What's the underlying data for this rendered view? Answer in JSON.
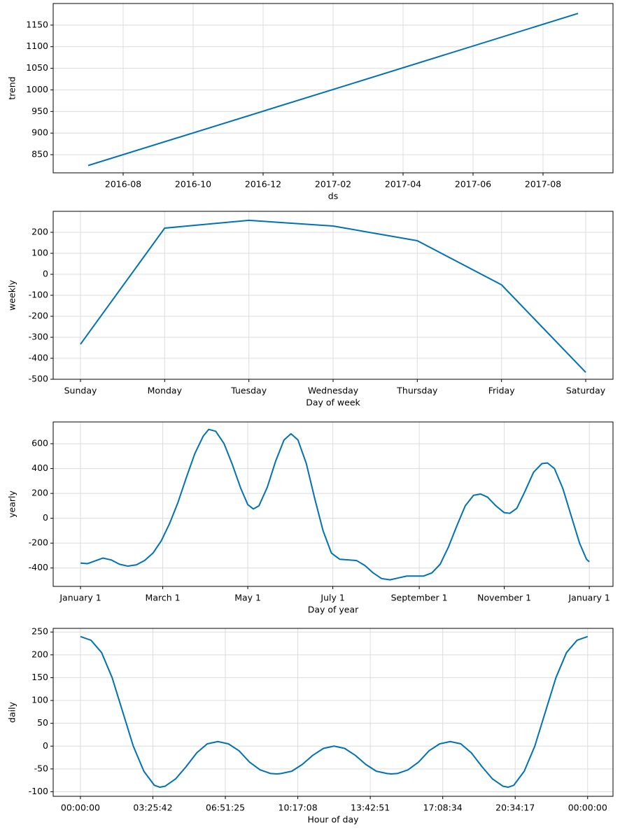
{
  "chart_data": [
    {
      "type": "line",
      "ylabel": "trend",
      "xlabel": "ds",
      "color": "#0072B2",
      "grid": true,
      "x": [
        "2016-07",
        "2017-09"
      ],
      "values": [
        825,
        1177
      ],
      "xlim": [
        "2016-06",
        "2017-10"
      ],
      "xticks": [
        "2016-08",
        "2016-10",
        "2016-12",
        "2017-02",
        "2017-04",
        "2017-06",
        "2017-08"
      ],
      "ylim": [
        808,
        1200
      ],
      "yticks": [
        850,
        900,
        950,
        1000,
        1050,
        1100,
        1150
      ]
    },
    {
      "type": "line",
      "ylabel": "weekly",
      "xlabel": "Day of week",
      "color": "#0072B2",
      "grid": true,
      "categories": [
        "Sunday",
        "Monday",
        "Tuesday",
        "Wednesday",
        "Thursday",
        "Friday",
        "Saturday"
      ],
      "values": [
        -333,
        220,
        257,
        230,
        160,
        -50,
        -467
      ],
      "ylim": [
        -500,
        300
      ],
      "yticks": [
        -500,
        -400,
        -300,
        -200,
        -100,
        0,
        100,
        200
      ]
    },
    {
      "type": "line",
      "ylabel": "yearly",
      "xlabel": "Day of year",
      "color": "#0072B2",
      "grid": true,
      "x": [
        0,
        5,
        10,
        16,
        22,
        28,
        34,
        40,
        46,
        52,
        58,
        64,
        70,
        76,
        82,
        88,
        92,
        97,
        103,
        109,
        115,
        120,
        124,
        128,
        134,
        140,
        146,
        151,
        156,
        162,
        168,
        174,
        180,
        186,
        192,
        198,
        204,
        210,
        216,
        222,
        228,
        234,
        240,
        246,
        252,
        258,
        264,
        270,
        276,
        282,
        287,
        292,
        298,
        304,
        308,
        313,
        319,
        325,
        331,
        335,
        340,
        346,
        352,
        358,
        363,
        365
      ],
      "values": [
        -360,
        -365,
        -345,
        -320,
        -335,
        -370,
        -385,
        -375,
        -340,
        -280,
        -180,
        -40,
        130,
        330,
        520,
        660,
        715,
        700,
        600,
        430,
        240,
        110,
        75,
        100,
        250,
        460,
        630,
        680,
        630,
        440,
        160,
        -100,
        -280,
        -330,
        -335,
        -340,
        -380,
        -440,
        -485,
        -495,
        -480,
        -465,
        -465,
        -465,
        -440,
        -370,
        -230,
        -60,
        100,
        185,
        195,
        170,
        100,
        45,
        40,
        80,
        220,
        370,
        440,
        445,
        400,
        240,
        20,
        -200,
        -330,
        -350
      ],
      "xlim": [
        -19.6,
        382
      ],
      "xticks": [
        {
          "value": 0,
          "label": "January 1"
        },
        {
          "value": 59,
          "label": "March 1"
        },
        {
          "value": 120,
          "label": "May 1"
        },
        {
          "value": 181,
          "label": "July 1"
        },
        {
          "value": 243,
          "label": "September 1"
        },
        {
          "value": 304,
          "label": "November 1"
        },
        {
          "value": 365,
          "label": "January 1"
        }
      ],
      "ylim": [
        -548,
        775
      ],
      "yticks": [
        -400,
        -200,
        0,
        200,
        400,
        600
      ]
    },
    {
      "type": "line",
      "ylabel": "daily",
      "xlabel": "Hour of day",
      "color": "#0072B2",
      "grid": true,
      "x": [
        0,
        0.5,
        1,
        1.5,
        2,
        2.5,
        3,
        3.5,
        3.75,
        4,
        4.5,
        5,
        5.5,
        6,
        6.5,
        7,
        7.5,
        8,
        8.5,
        9,
        9.3,
        9.5,
        10,
        10.5,
        11,
        11.5,
        12,
        12.5,
        13,
        13.5,
        14,
        14.5,
        14.7,
        15,
        15.5,
        16,
        16.5,
        17,
        17.5,
        18,
        18.5,
        19,
        19.5,
        20,
        20.25,
        20.5,
        21,
        21.5,
        22,
        22.5,
        23,
        23.5,
        24
      ],
      "values": [
        240,
        232,
        205,
        150,
        75,
        0,
        -55,
        -86,
        -90,
        -88,
        -72,
        -45,
        -15,
        5,
        10,
        5,
        -10,
        -35,
        -52,
        -60,
        -61,
        -60,
        -55,
        -40,
        -20,
        -5,
        0,
        -5,
        -20,
        -40,
        -55,
        -60,
        -61,
        -60,
        -52,
        -35,
        -10,
        5,
        10,
        5,
        -15,
        -45,
        -72,
        -88,
        -90,
        -86,
        -55,
        0,
        75,
        150,
        205,
        232,
        240
      ],
      "xlim": [
        -1.29,
        25.2
      ],
      "xticks": [
        {
          "value": 0,
          "label": "00:00:00"
        },
        {
          "value": 3.428571,
          "label": "03:25:42"
        },
        {
          "value": 6.857143,
          "label": "06:51:25"
        },
        {
          "value": 10.285714,
          "label": "10:17:08"
        },
        {
          "value": 13.714286,
          "label": "13:42:51"
        },
        {
          "value": 17.142857,
          "label": "17:08:34"
        },
        {
          "value": 20.571429,
          "label": "20:34:17"
        },
        {
          "value": 24,
          "label": "00:00:00"
        }
      ],
      "ylim": [
        -110,
        258
      ],
      "yticks": [
        -100,
        -50,
        0,
        50,
        100,
        150,
        200,
        250
      ]
    }
  ]
}
